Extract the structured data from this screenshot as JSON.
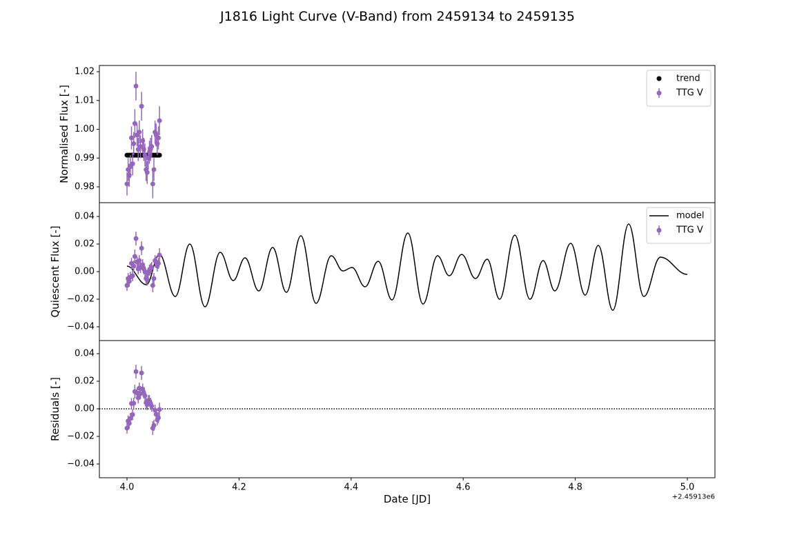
{
  "title": "J1816 Light Curve (V-Band) from 2459134 to 2459135",
  "chart_data": [
    {
      "type": "scatter",
      "ylabel": "Normalised Flux [-]",
      "xlim": [
        3.9507,
        5.0493
      ],
      "ylim": [
        0.97449,
        1.02216
      ],
      "yticks": [
        0.98,
        0.99,
        {
          "value": 1,
          "label": "1.00"
        },
        1.01,
        1.02
      ],
      "legend": "upper right",
      "series": [
        {
          "name": "trend",
          "mark": "dot",
          "color": "#000000",
          "x": [
            4.0,
            4.002,
            4.004,
            4.006,
            4.008,
            4.01,
            4.012,
            4.014,
            4.016,
            4.018,
            4.02,
            4.022,
            4.024,
            4.026,
            4.028,
            4.03,
            4.032,
            4.034,
            4.036,
            4.038,
            4.04,
            4.042,
            4.044,
            4.046,
            4.048,
            4.05,
            4.052,
            4.054,
            4.056,
            4.058
          ],
          "values": [
            0.991,
            0.991,
            0.991,
            0.991,
            0.991,
            0.991,
            0.991,
            0.991,
            0.991,
            0.991,
            0.991,
            0.991,
            0.991,
            0.991,
            0.991,
            0.991,
            0.991,
            0.991,
            0.991,
            0.991,
            0.991,
            0.991,
            0.991,
            0.991,
            0.991,
            0.991,
            0.991,
            0.991,
            0.991,
            0.991
          ]
        },
        {
          "name": "TTG V",
          "mark": "errorbar",
          "color": "#9467bd",
          "x": [
            4.0,
            4.002,
            4.004,
            4.006,
            4.008,
            4.01,
            4.012,
            4.014,
            4.016,
            4.018,
            4.02,
            4.022,
            4.024,
            4.026,
            4.028,
            4.03,
            4.032,
            4.034,
            4.036,
            4.038,
            4.04,
            4.042,
            4.044,
            4.046,
            4.048,
            4.05,
            4.052,
            4.054,
            4.056,
            4.058
          ],
          "values": [
            0.981,
            0.986,
            0.984,
            0.987,
            0.997,
            0.988,
            0.995,
            1.002,
            1.015,
            0.998,
            0.993,
            0.999,
            0.994,
            1.008,
            0.996,
            0.993,
            0.991,
            0.986,
            0.985,
            0.99,
            0.992,
            0.993,
            0.994,
            0.981,
            0.986,
            0.999,
            0.998,
            0.995,
            0.997,
            1.003
          ],
          "errors": [
            0.004,
            0.004,
            0.004,
            0.004,
            0.004,
            0.004,
            0.004,
            0.005,
            0.005,
            0.004,
            0.004,
            0.004,
            0.004,
            0.005,
            0.004,
            0.004,
            0.004,
            0.004,
            0.004,
            0.004,
            0.004,
            0.004,
            0.004,
            0.005,
            0.004,
            0.004,
            0.004,
            0.004,
            0.004,
            0.005
          ]
        }
      ]
    },
    {
      "type": "line",
      "ylabel": "Quiescent Flux [-]",
      "xlim": [
        3.9507,
        5.0493
      ],
      "ylim": [
        -0.05,
        0.05
      ],
      "yticks": [
        {
          "value": -0.04,
          "label": "−0.04"
        },
        {
          "value": -0.02,
          "label": "−0.02"
        },
        {
          "value": 0,
          "label": "0.00"
        },
        0.02,
        0.04
      ],
      "legend": "upper right",
      "series": [
        {
          "name": "model",
          "mark": "line",
          "color": "#000000",
          "x": [
            4.0,
            4.0345,
            4.0579,
            4.0862,
            4.1121,
            4.1392,
            4.1663,
            4.1897,
            4.2106,
            4.2352,
            4.2599,
            4.2845,
            4.3103,
            4.3374,
            4.3645,
            4.3855,
            4.4015,
            4.4249,
            4.4483,
            4.4729,
            4.5012,
            4.5283,
            4.5542,
            4.5751,
            4.5973,
            4.6219,
            4.6429,
            4.665,
            4.6921,
            4.7192,
            4.7426,
            4.7635,
            4.7919,
            4.8177,
            4.8411,
            4.867,
            4.8953,
            4.9224,
            4.952,
            5.0
          ],
          "values": [
            0.004,
            -0.0095,
            0.0125,
            -0.018,
            0.02,
            -0.0255,
            0.014,
            -0.0065,
            0.01,
            -0.014,
            0.0175,
            -0.015,
            0.026,
            -0.023,
            0.0115,
            0.0005,
            0.003,
            -0.011,
            0.0075,
            -0.0205,
            0.028,
            -0.0235,
            0.0115,
            -0.003,
            0.0125,
            -0.005,
            0.009,
            -0.02,
            0.0265,
            -0.02,
            0.008,
            -0.014,
            0.0205,
            -0.017,
            0.019,
            -0.028,
            0.0345,
            -0.018,
            0.0105,
            -0.002
          ]
        },
        {
          "name": "TTG V",
          "mark": "errorbar",
          "color": "#9467bd",
          "x": [
            4.0,
            4.002,
            4.004,
            4.006,
            4.008,
            4.01,
            4.012,
            4.014,
            4.016,
            4.018,
            4.02,
            4.022,
            4.024,
            4.026,
            4.028,
            4.03,
            4.032,
            4.034,
            4.036,
            4.038,
            4.04,
            4.042,
            4.044,
            4.046,
            4.048,
            4.05,
            4.052,
            4.054,
            4.056,
            4.058
          ],
          "values": [
            -0.01,
            -0.005,
            -0.007,
            -0.004,
            0.006,
            -0.003,
            0.004,
            0.011,
            0.024,
            0.007,
            0.002,
            0.008,
            0.003,
            0.017,
            0.005,
            0.002,
            0.0,
            -0.005,
            -0.006,
            -0.001,
            0.001,
            0.002,
            0.003,
            -0.01,
            -0.005,
            0.008,
            0.007,
            0.004,
            0.006,
            0.012
          ],
          "errors": [
            0.004,
            0.004,
            0.004,
            0.004,
            0.004,
            0.004,
            0.004,
            0.005,
            0.005,
            0.004,
            0.004,
            0.004,
            0.004,
            0.005,
            0.004,
            0.004,
            0.004,
            0.004,
            0.004,
            0.004,
            0.004,
            0.004,
            0.004,
            0.005,
            0.004,
            0.004,
            0.004,
            0.004,
            0.004,
            0.005
          ]
        }
      ]
    },
    {
      "type": "scatter",
      "ylabel": "Residuals [-]",
      "xlabel": "Date [JD]",
      "x_offset_label": "+2.45913e6",
      "xlim": [
        3.9507,
        5.0493
      ],
      "ylim": [
        -0.05,
        0.0495
      ],
      "xticks": [
        {
          "value": 4,
          "label": "4.0"
        },
        4.2,
        4.4,
        4.6,
        4.8,
        {
          "value": 5,
          "label": "5.0"
        }
      ],
      "yticks": [
        {
          "value": -0.04,
          "label": "−0.04"
        },
        {
          "value": -0.02,
          "label": "−0.02"
        },
        {
          "value": 0,
          "label": "0.00"
        },
        0.02,
        0.04
      ],
      "hline": 0,
      "series": [
        {
          "mark": "errorbar",
          "color": "#9467bd",
          "x": [
            4.0,
            4.002,
            4.004,
            4.006,
            4.008,
            4.01,
            4.012,
            4.014,
            4.016,
            4.018,
            4.02,
            4.022,
            4.024,
            4.026,
            4.028,
            4.03,
            4.032,
            4.034,
            4.036,
            4.038,
            4.04,
            4.042,
            4.044,
            4.046,
            4.048,
            4.05,
            4.052,
            4.054,
            4.056,
            4.058
          ],
          "values": [
            -0.014,
            -0.0088,
            -0.0105,
            -0.007,
            0.0038,
            -0.0042,
            0.004,
            0.0125,
            0.027,
            0.0115,
            0.008,
            0.015,
            0.011,
            0.026,
            0.0143,
            0.0115,
            0.0095,
            0.0045,
            0.003,
            0.006,
            0.006,
            0.004,
            0.002,
            -0.014,
            -0.012,
            -0.001,
            -0.004,
            -0.008,
            -0.0065,
            -0.0005
          ],
          "errors": [
            0.004,
            0.004,
            0.004,
            0.004,
            0.004,
            0.004,
            0.004,
            0.005,
            0.005,
            0.004,
            0.004,
            0.004,
            0.004,
            0.005,
            0.004,
            0.004,
            0.004,
            0.004,
            0.004,
            0.004,
            0.004,
            0.004,
            0.004,
            0.005,
            0.004,
            0.004,
            0.004,
            0.004,
            0.004,
            0.005
          ]
        }
      ]
    }
  ]
}
